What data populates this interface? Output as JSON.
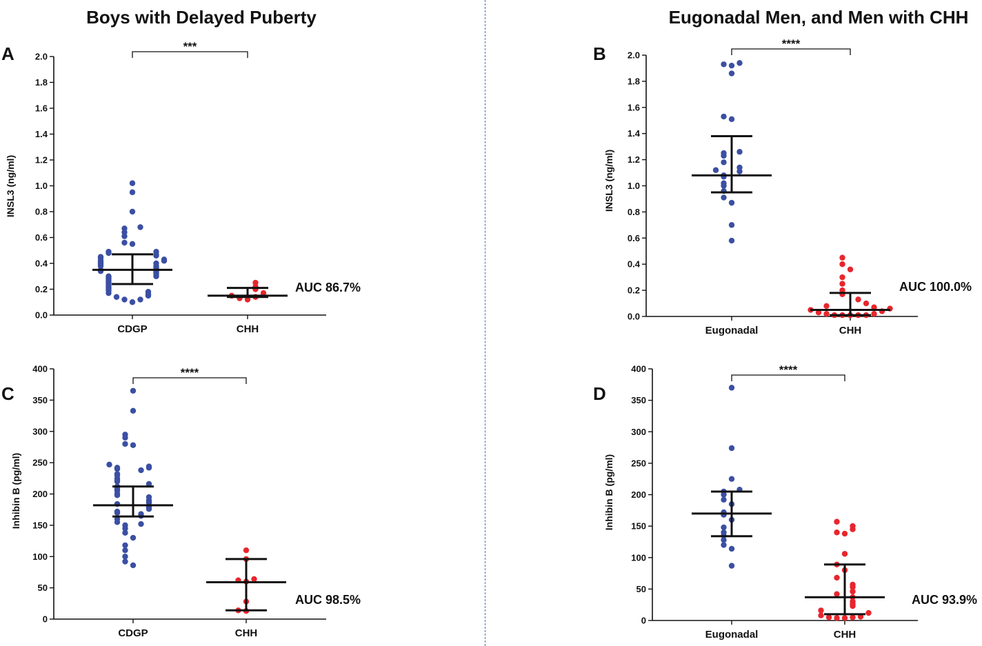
{
  "figure": {
    "left_title": "Boys with Delayed Puberty",
    "right_title": "Eugonadal Men, and Men with CHH",
    "colors": {
      "blue": "#3b4fa3",
      "red": "#e8262c",
      "axis": "#111111",
      "divider": "#4a6fb0"
    }
  },
  "chart_data": [
    {
      "panel": "A",
      "type": "scatter",
      "title": "",
      "ylabel": "INSL3 (ng/ml)",
      "ylim": [
        0,
        2.0
      ],
      "yticks": [
        "0.0",
        "0.2",
        "0.4",
        "0.6",
        "0.8",
        "1.0",
        "1.2",
        "1.4",
        "1.6",
        "1.8",
        "2.0"
      ],
      "categories": [
        "CDGP",
        "CHH"
      ],
      "series": [
        {
          "name": "CDGP",
          "color": "#3b4fa3",
          "median": 0.35,
          "q1": 0.24,
          "q3": 0.47,
          "values": [
            1.02,
            0.95,
            0.8,
            0.68,
            0.67,
            0.64,
            0.61,
            0.56,
            0.55,
            0.49,
            0.49,
            0.48,
            0.47,
            0.46,
            0.45,
            0.44,
            0.43,
            0.42,
            0.42,
            0.41,
            0.4,
            0.4,
            0.39,
            0.38,
            0.38,
            0.37,
            0.36,
            0.35,
            0.34,
            0.34,
            0.33,
            0.32,
            0.31,
            0.3,
            0.3,
            0.29,
            0.28,
            0.27,
            0.26,
            0.25,
            0.24,
            0.23,
            0.22,
            0.21,
            0.2,
            0.19,
            0.18,
            0.17,
            0.16,
            0.15,
            0.14,
            0.12,
            0.12,
            0.1
          ]
        },
        {
          "name": "CHH",
          "color": "#e8262c",
          "median": 0.15,
          "q1": 0.14,
          "q3": 0.21,
          "values": [
            0.25,
            0.22,
            0.2,
            0.17,
            0.15,
            0.14,
            0.13,
            0.12
          ]
        }
      ],
      "significance": "***",
      "auc": "AUC 86.7%"
    },
    {
      "panel": "B",
      "type": "scatter",
      "title": "",
      "ylabel": "INSL3 (ng/ml)",
      "ylim": [
        0,
        2.0
      ],
      "yticks": [
        "0.0",
        "0.2",
        "0.4",
        "0.6",
        "0.8",
        "1.0",
        "1.2",
        "1.4",
        "1.6",
        "1.8",
        "2.0"
      ],
      "categories": [
        "Eugonadal",
        "CHH"
      ],
      "series": [
        {
          "name": "Eugonadal",
          "color": "#3b4fa3",
          "median": 1.08,
          "q1": 0.95,
          "q3": 1.38,
          "values": [
            1.94,
            1.93,
            1.92,
            1.86,
            1.53,
            1.51,
            1.26,
            1.25,
            1.23,
            1.18,
            1.14,
            1.12,
            1.11,
            1.08,
            1.07,
            1.02,
            1.0,
            0.96,
            0.91,
            0.87,
            0.7,
            0.58
          ]
        },
        {
          "name": "CHH",
          "color": "#e8262c",
          "median": 0.05,
          "q1": 0.01,
          "q3": 0.18,
          "values": [
            0.45,
            0.4,
            0.36,
            0.3,
            0.25,
            0.2,
            0.17,
            0.13,
            0.1,
            0.08,
            0.07,
            0.06,
            0.05,
            0.04,
            0.03,
            0.02,
            0.02,
            0.01,
            0.01,
            0.01,
            0.01,
            0.01
          ]
        }
      ],
      "significance": "****",
      "auc": "AUC 100.0%"
    },
    {
      "panel": "C",
      "type": "scatter",
      "title": "",
      "ylabel": "Inhibin B (pg/ml)",
      "ylim": [
        0,
        400
      ],
      "yticks": [
        "0",
        "50",
        "100",
        "150",
        "200",
        "250",
        "300",
        "350",
        "400"
      ],
      "categories": [
        "CDGP",
        "CHH"
      ],
      "series": [
        {
          "name": "CDGP",
          "color": "#3b4fa3",
          "median": 182,
          "q1": 164,
          "q3": 212,
          "values": [
            365,
            333,
            295,
            290,
            280,
            278,
            247,
            244,
            242,
            242,
            240,
            238,
            232,
            230,
            225,
            222,
            220,
            216,
            212,
            210,
            208,
            205,
            200,
            198,
            195,
            190,
            188,
            186,
            184,
            180,
            178,
            176,
            172,
            170,
            168,
            165,
            160,
            155,
            152,
            150,
            145,
            138,
            130,
            118,
            110,
            100,
            92,
            86
          ]
        },
        {
          "name": "CHH",
          "color": "#e8262c",
          "median": 59,
          "q1": 14,
          "q3": 96,
          "values": [
            110,
            96,
            64,
            62,
            60,
            28,
            14,
            13
          ]
        }
      ],
      "significance": "****",
      "auc": "AUC 98.5%"
    },
    {
      "panel": "D",
      "type": "scatter",
      "title": "",
      "ylabel": "Inhibin B (pg/ml)",
      "ylim": [
        0,
        400
      ],
      "yticks": [
        "0",
        "50",
        "100",
        "150",
        "200",
        "250",
        "300",
        "350",
        "400"
      ],
      "categories": [
        "Eugonadal",
        "CHH"
      ],
      "series": [
        {
          "name": "Eugonadal",
          "color": "#3b4fa3",
          "median": 170,
          "q1": 134,
          "q3": 205,
          "values": [
            370,
            274,
            225,
            208,
            205,
            200,
            192,
            185,
            172,
            168,
            160,
            148,
            140,
            135,
            128,
            120,
            114,
            87
          ]
        },
        {
          "name": "CHH",
          "color": "#e8262c",
          "median": 37,
          "q1": 10,
          "q3": 89,
          "values": [
            157,
            150,
            145,
            140,
            138,
            106,
            89,
            80,
            68,
            57,
            53,
            46,
            42,
            37,
            30,
            26,
            23,
            16,
            12,
            8,
            6,
            5,
            5,
            4,
            4
          ]
        }
      ],
      "significance": "****",
      "auc": "AUC 93.9%"
    }
  ]
}
